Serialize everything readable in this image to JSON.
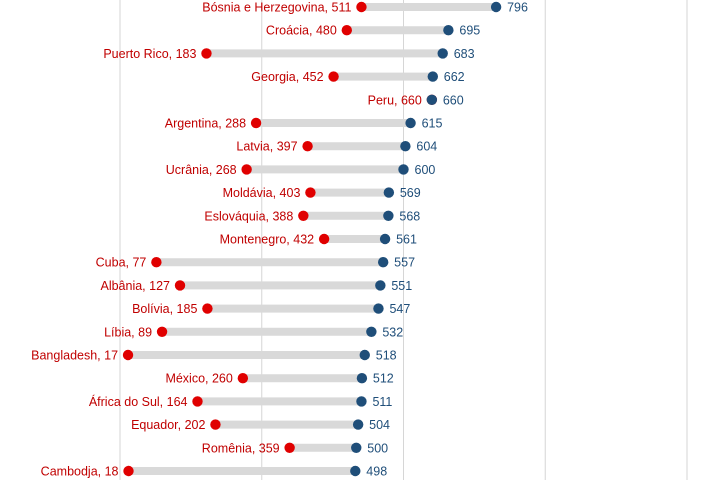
{
  "chart_data": {
    "type": "dumbbell",
    "grid": true,
    "colors": {
      "low": "#e00000",
      "high": "#1f4e79",
      "connector": "#d9d9d9",
      "low_label": "#c00000",
      "high_label": "#1f4e79"
    },
    "rows": [
      {
        "country": "Bósnia e Herzegovina",
        "low": 511,
        "high": 796
      },
      {
        "country": "Croácia",
        "low": 480,
        "high": 695
      },
      {
        "country": "Puerto Rico",
        "low": 183,
        "high": 683
      },
      {
        "country": "Georgia",
        "low": 452,
        "high": 662
      },
      {
        "country": "Peru",
        "low": 660,
        "high": 660
      },
      {
        "country": "Argentina",
        "low": 288,
        "high": 615
      },
      {
        "country": "Latvia",
        "low": 397,
        "high": 604
      },
      {
        "country": "Ucrânia",
        "low": 268,
        "high": 600
      },
      {
        "country": "Moldávia",
        "low": 403,
        "high": 569
      },
      {
        "country": "Eslováquia",
        "low": 388,
        "high": 568
      },
      {
        "country": "Montenegro",
        "low": 432,
        "high": 561
      },
      {
        "country": "Cuba",
        "low": 77,
        "high": 557
      },
      {
        "country": "Albânia",
        "low": 127,
        "high": 551
      },
      {
        "country": "Bolívia",
        "low": 185,
        "high": 547
      },
      {
        "country": "Líbia",
        "low": 89,
        "high": 532
      },
      {
        "country": "Bangladesh",
        "low": 17,
        "high": 518
      },
      {
        "country": "México",
        "low": 260,
        "high": 512
      },
      {
        "country": "África do Sul",
        "low": 164,
        "high": 511
      },
      {
        "country": "Equador",
        "low": 202,
        "high": 504
      },
      {
        "country": "Romênia",
        "low": 359,
        "high": 500
      },
      {
        "country": "Cambodja",
        "low": 18,
        "high": 498
      }
    ]
  }
}
